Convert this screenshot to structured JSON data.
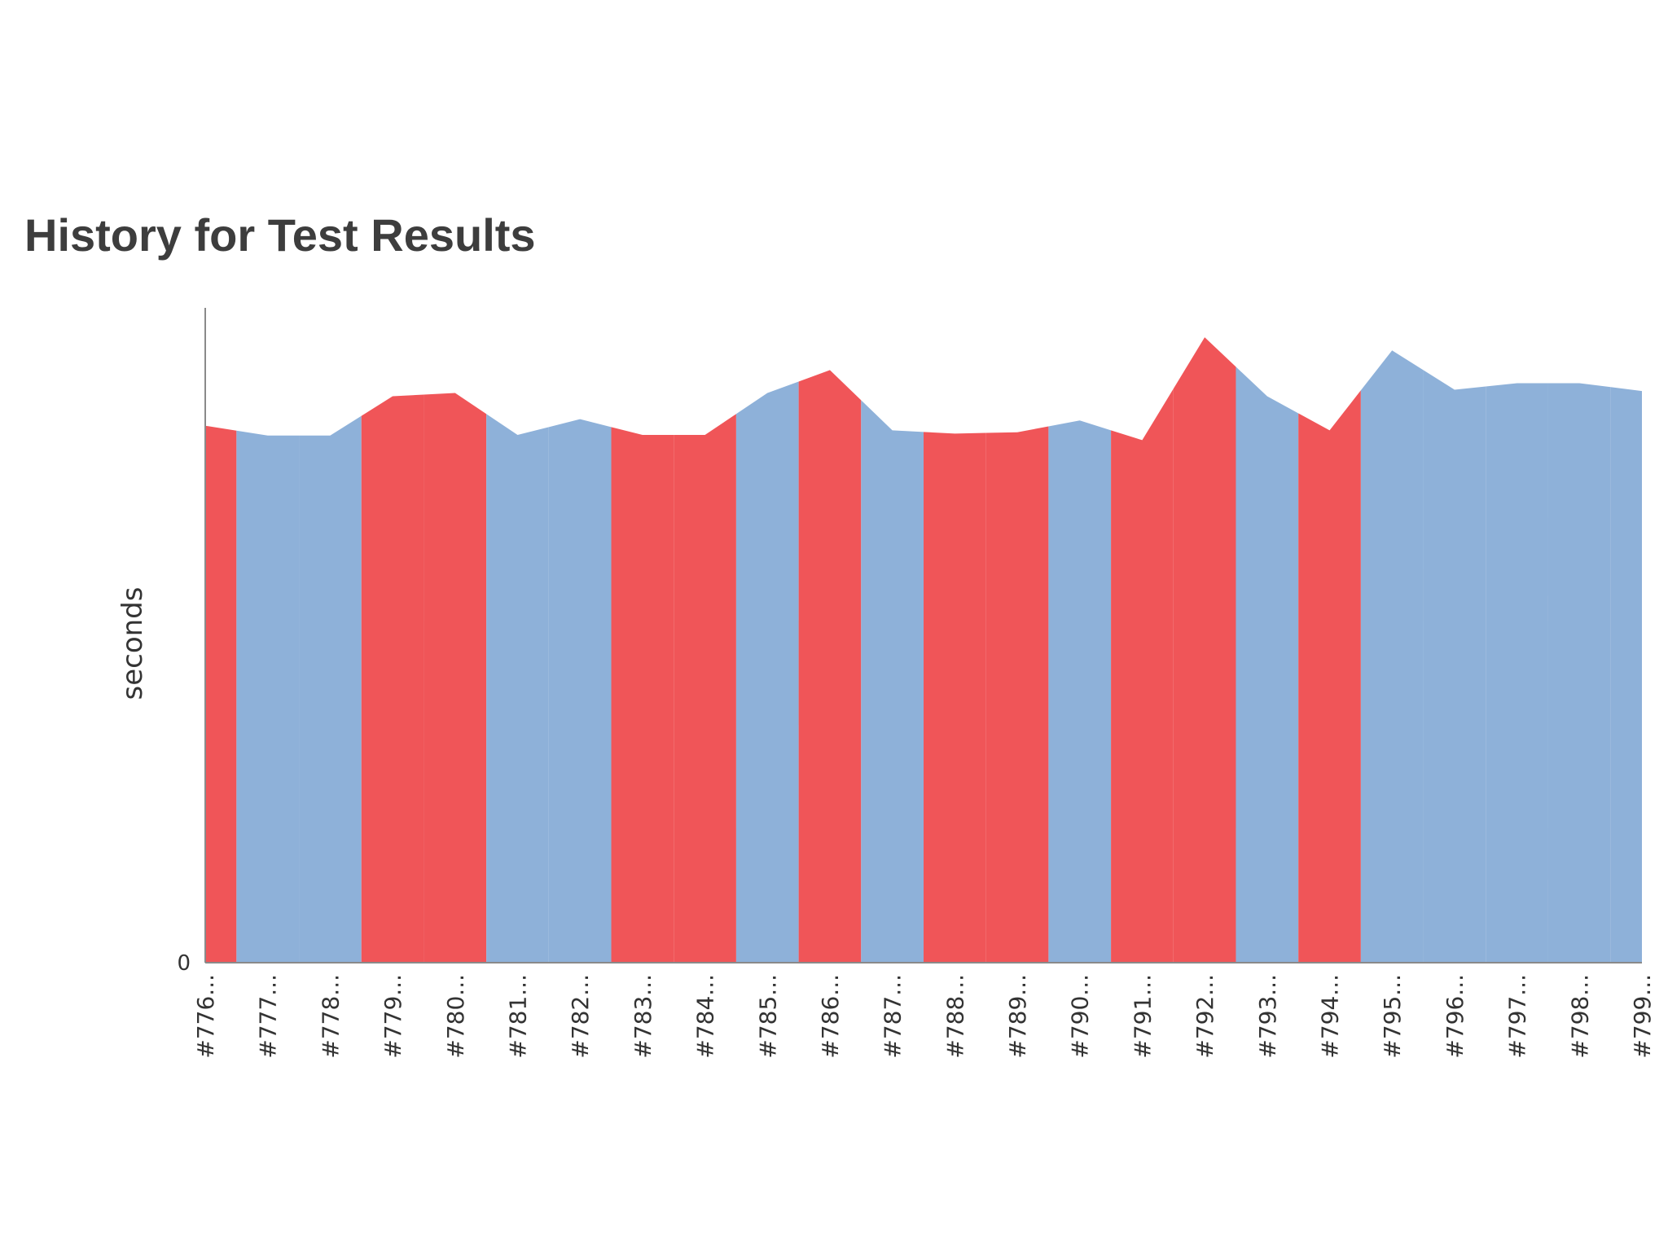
{
  "page": {
    "title": "History for Test Results"
  },
  "chart_data": {
    "type": "area",
    "title": "History for Test Results",
    "xlabel": "",
    "ylabel": "seconds",
    "y_tick_labels": [
      "0"
    ],
    "ylim": [
      0,
      100
    ],
    "grid": false,
    "legend": "none",
    "status_colors": {
      "failed": "#f05558",
      "passed": "#8eb1d9"
    },
    "categories": [
      "#776...",
      "#777...",
      "#778...",
      "#779...",
      "#780...",
      "#781...",
      "#782...",
      "#783...",
      "#784...",
      "#785...",
      "#786...",
      "#787...",
      "#788...",
      "#789...",
      "#790...",
      "#791...",
      "#792...",
      "#793...",
      "#794...",
      "#795...",
      "#796...",
      "#797...",
      "#798...",
      "#799..."
    ],
    "values": [
      82,
      80.5,
      80.5,
      86.5,
      87,
      80.6,
      83,
      80.6,
      80.6,
      87,
      90.5,
      81.3,
      80.8,
      81,
      82.8,
      79.8,
      95.5,
      86.5,
      81.3,
      93.5,
      87.5,
      88.5,
      88.5,
      87.3
    ],
    "status": [
      "failed",
      "passed",
      "passed",
      "failed",
      "failed",
      "passed",
      "passed",
      "failed",
      "failed",
      "passed",
      "failed",
      "passed",
      "failed",
      "failed",
      "passed",
      "failed",
      "failed",
      "passed",
      "failed",
      "passed",
      "passed",
      "passed",
      "passed",
      "passed"
    ]
  }
}
